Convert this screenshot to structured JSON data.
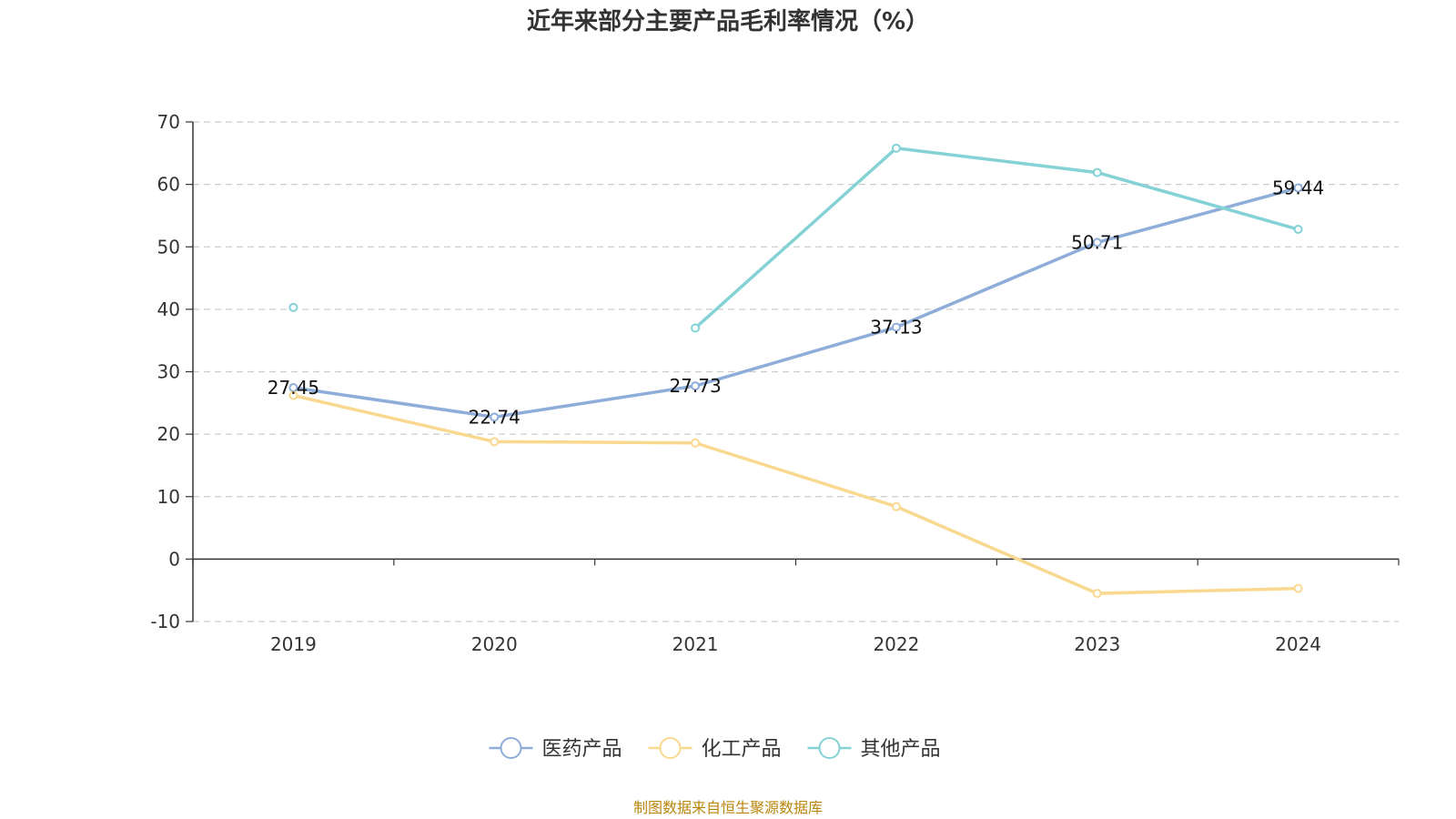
{
  "chart_data": {
    "type": "line",
    "title": "近年来部分主要产品毛利率情况（%）",
    "categories": [
      "2019",
      "2020",
      "2021",
      "2022",
      "2023",
      "2024"
    ],
    "ylim": [
      -10,
      70
    ],
    "yticks": [
      70,
      60,
      50,
      40,
      30,
      20,
      10,
      0,
      -10
    ],
    "grid": true,
    "legend_position": "bottom-center",
    "series": [
      {
        "name": "医药产品",
        "color": "#8eadd9",
        "values": [
          27.45,
          22.74,
          27.73,
          37.13,
          50.71,
          59.44
        ],
        "show_labels": true
      },
      {
        "name": "化工产品",
        "color": "#f9d88f",
        "values": [
          26.2,
          18.8,
          18.6,
          8.4,
          -5.5,
          -4.7
        ],
        "show_labels": false
      },
      {
        "name": "其他产品",
        "color": "#84d2d6",
        "values": [
          40.3,
          null,
          37.0,
          65.8,
          61.9,
          52.8
        ],
        "show_labels": false
      }
    ]
  },
  "source": "制图数据来自恒生聚源数据库"
}
